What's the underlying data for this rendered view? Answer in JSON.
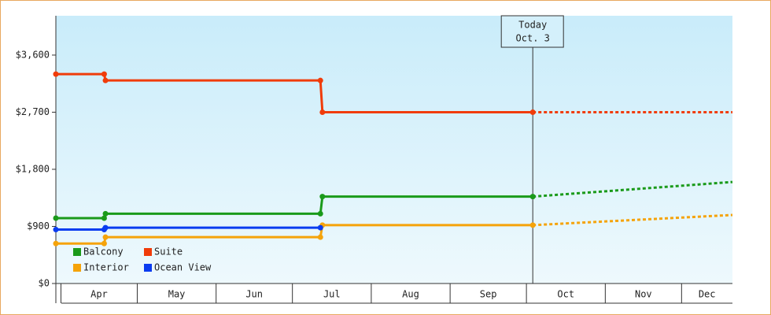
{
  "chart_data": {
    "type": "line",
    "xlim": [
      -2,
      264
    ],
    "ylim": [
      0,
      4220
    ],
    "xticks": [
      0,
      30,
      61,
      91,
      122,
      153,
      183,
      214,
      244
    ],
    "categories": [
      "Apr",
      "May",
      "Jun",
      "Jul",
      "Aug",
      "Sep",
      "Oct",
      "Nov",
      "Dec"
    ],
    "yticks": [
      {
        "value": 0,
        "label": "$0"
      },
      {
        "value": 900,
        "label": "$900"
      },
      {
        "value": 1800,
        "label": "$1,800"
      },
      {
        "value": 2700,
        "label": "$2,700"
      },
      {
        "value": 3600,
        "label": "$3,600"
      }
    ],
    "annotation": {
      "label": [
        "Today",
        "Oct. 3"
      ],
      "x": 185.5
    },
    "legend": "bottom-left",
    "series": [
      {
        "name": "Balcony",
        "color": "#1a9a1a",
        "x": [
          -2,
          17,
          17.5,
          102,
          102.8,
          185.5,
          264
        ],
        "values": [
          1030,
          1030,
          1100,
          1100,
          1370,
          1370,
          1600
        ]
      },
      {
        "name": "Suite",
        "color": "#f03c0a",
        "x": [
          -2,
          17,
          17.5,
          102,
          102.8,
          185.5,
          264
        ],
        "values": [
          3300,
          3300,
          3200,
          3200,
          2700,
          2700,
          2700
        ]
      },
      {
        "name": "Interior",
        "color": "#f5a30a",
        "x": [
          -2,
          17,
          17.5,
          102,
          102.8,
          185.5,
          264
        ],
        "values": [
          630,
          630,
          730,
          730,
          920,
          920,
          1080
        ]
      },
      {
        "name": "Ocean View",
        "color": "#0a3cf0",
        "x": [
          -2,
          17,
          17.5,
          102
        ],
        "values": [
          850,
          850,
          880,
          880
        ]
      }
    ]
  }
}
